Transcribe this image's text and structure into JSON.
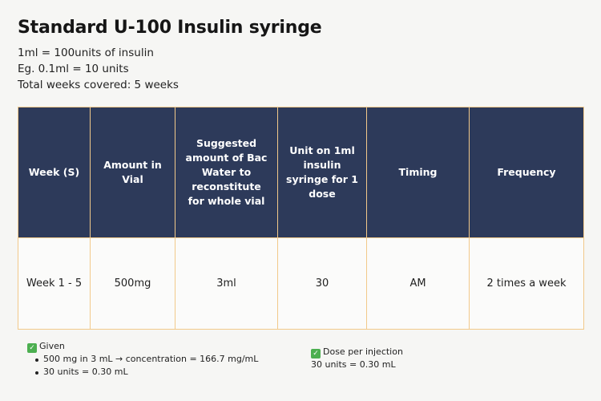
{
  "title": "Standard U-100 Insulin syringe",
  "info": {
    "line1": "1ml = 100units of insulin",
    "line2": "Eg. 0.1ml = 10 units",
    "line3": "Total weeks covered: 5 weeks"
  },
  "table": {
    "headers": [
      "Week (S)",
      "Amount in Vial",
      "Suggested amount of Bac Water to reconstitute for whole vial",
      "Unit on 1ml insulin syringe for 1 dose",
      "Timing",
      "Frequency"
    ],
    "rows": [
      [
        "Week 1 - 5",
        "500mg",
        "3ml",
        "30",
        "AM",
        "2 times a week"
      ]
    ]
  },
  "notes": {
    "given_label": "Given",
    "given_items": [
      "500 mg in 3 mL → concentration = 166.7 mg/mL",
      "30 units = 0.30 mL"
    ],
    "dose_label": "Dose per injection",
    "dose_value": "30 units = 0.30 mL"
  },
  "icons": {
    "check": "check-mark-icon"
  },
  "colors": {
    "header_bg": "#2d3a5a",
    "border": "#f2c98a",
    "check_green": "#4caf50"
  }
}
